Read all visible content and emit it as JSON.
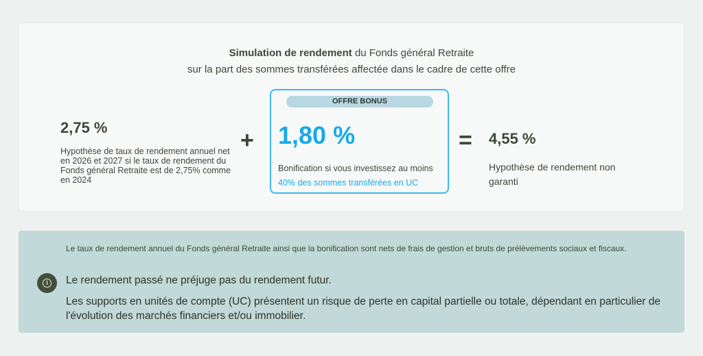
{
  "header": {
    "title_bold": "Simulation de rendement",
    "title_rest": " du Fonds général Retraite",
    "subtitle": "sur la part des sommes transférées affectée dans le cadre de cette offre"
  },
  "base": {
    "value": "2,75 %",
    "description": "Hypothèse de taux de rendement annuel net en 2026 et 2027 si le taux de rendement du Fonds général Retraite est de 2,75% comme en 2024"
  },
  "plus_sign": "+",
  "bonus": {
    "badge": "OFFRE BONUS",
    "value": "1,80 %",
    "description_start": "Bonification si vous investissez au moins ",
    "description_highlight": "40% des sommes transférées en UC"
  },
  "equals_sign": "=",
  "total": {
    "value": "4,55 %",
    "description": "Hypothèse de rendement non garanti"
  },
  "notice": {
    "small": "Le taux de rendement annuel du Fonds général Retraite ainsi que la bonification sont nets de frais de gestion et bruts de prélèvements sociaux et fiscaux.",
    "icon": "info-icon",
    "line1": "Le rendement passé ne préjuge pas du rendement futur.",
    "line2": "Les supports en unités de compte (UC) présentent un risque de perte en capital partielle ou totale, dépendant en particulier de l'évolution des marchés financiers et/ou immobilier."
  },
  "colors": {
    "accent": "#16aaea",
    "text": "#3d4739",
    "notice_bg": "#c1d9d8",
    "badge_bg": "#b8d7e2"
  }
}
